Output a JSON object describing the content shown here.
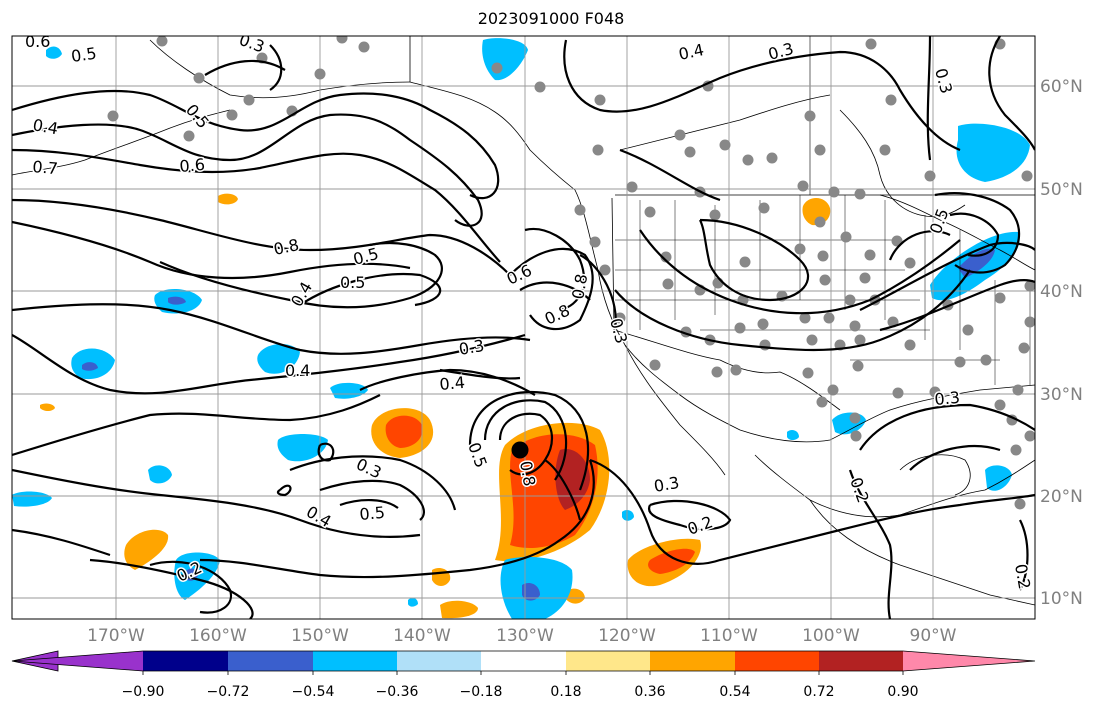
{
  "title": "2023091000 F048",
  "map": {
    "lon_labels": [
      "170°W",
      "160°W",
      "150°W",
      "140°W",
      "130°W",
      "120°W",
      "110°W",
      "100°W",
      "90°W"
    ],
    "lat_labels": [
      "60°N",
      "50°N",
      "40°N",
      "30°N",
      "20°N",
      "10°N"
    ],
    "contour_labels": [
      "0.6",
      "0.3",
      "0.5",
      "0.4",
      "0.3",
      "0.3",
      "0.5",
      "0.4",
      "0.7",
      "0.6",
      "0.5",
      "0.8",
      "0.5",
      "0.4",
      "0.6",
      "0.8",
      "0.8",
      "0.3",
      "0.3",
      "0.4",
      "0.4",
      "0.5",
      "0.8",
      "0.3",
      "0.5",
      "0.4",
      "0.2",
      "0.3",
      "0.2",
      "0.3",
      "0.2",
      "0.2",
      "0.5"
    ],
    "grid": true,
    "storm_marker": "black-dot"
  },
  "colorbar": {
    "ticks": [
      "−0.90",
      "−0.72",
      "−0.54",
      "−0.36",
      "−0.18",
      "0.18",
      "0.36",
      "0.54",
      "0.72",
      "0.90"
    ],
    "colors": [
      "#9932cc",
      "#00008b",
      "#3a5fcd",
      "#00bfff",
      "#b0e0f8",
      "#ffffff",
      "#ffe78a",
      "#ffa500",
      "#ff4500",
      "#b22222",
      "#ff88aa"
    ]
  }
}
